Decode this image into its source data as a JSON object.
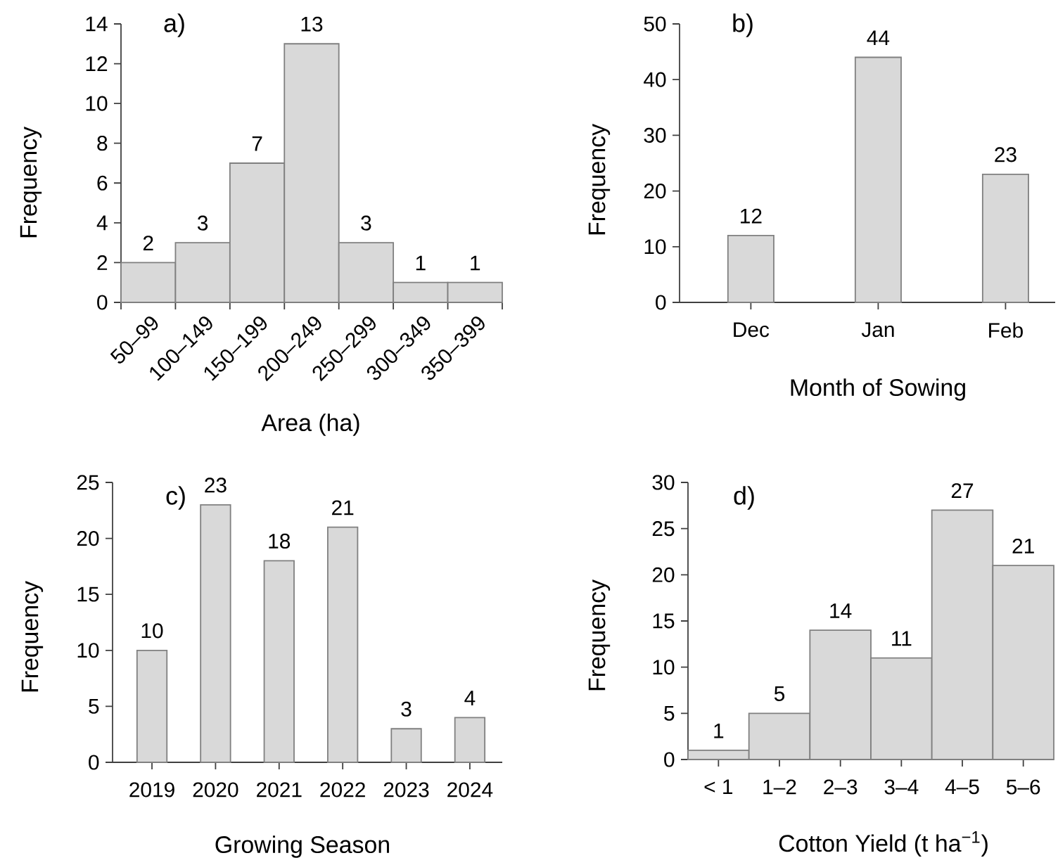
{
  "chart_data": [
    {
      "type": "bar",
      "title": "a)",
      "xlabel": "Area (ha)",
      "ylabel": "Frequency",
      "categories": [
        "50–99",
        "100–149",
        "150–199",
        "200–249",
        "250–299",
        "300–349",
        "350–399"
      ],
      "values": [
        2,
        3,
        7,
        13,
        3,
        1,
        1
      ],
      "color": "#d9d9d9",
      "ylim": [
        0,
        14
      ],
      "yticks": [
        0,
        2,
        4,
        6,
        8,
        10,
        12,
        14
      ],
      "data_labels": true
    },
    {
      "type": "bar",
      "title": "b)",
      "xlabel": "Month of Sowing",
      "ylabel": "Frequency",
      "categories": [
        "Dec",
        "Jan",
        "Feb"
      ],
      "values": [
        12,
        44,
        23
      ],
      "color": "#d9d9d9",
      "ylim": [
        0,
        50
      ],
      "yticks": [
        0,
        10,
        20,
        30,
        40,
        50
      ],
      "data_labels": true
    },
    {
      "type": "bar",
      "title": "c)",
      "xlabel": "Growing Season",
      "ylabel": "Frequency",
      "categories": [
        "2019",
        "2020",
        "2021",
        "2022",
        "2023",
        "2024"
      ],
      "values": [
        10,
        23,
        18,
        21,
        3,
        4
      ],
      "color": "#d9d9d9",
      "ylim": [
        0,
        25
      ],
      "yticks": [
        0,
        5,
        10,
        15,
        20,
        25
      ],
      "data_labels": true
    },
    {
      "type": "bar",
      "title": "d)",
      "xlabel": "Cotton Yield (t ha$^{−1}$)",
      "ylabel": "Frequency",
      "categories": [
        "< 1",
        "1–2",
        "2–3",
        "3–4",
        "4–5",
        "5–6"
      ],
      "values": [
        1,
        5,
        14,
        11,
        27,
        21
      ],
      "color": "#d9d9d9",
      "ylim": [
        0,
        30
      ],
      "yticks": [
        0,
        5,
        10,
        15,
        20,
        25,
        30
      ],
      "data_labels": true
    }
  ]
}
